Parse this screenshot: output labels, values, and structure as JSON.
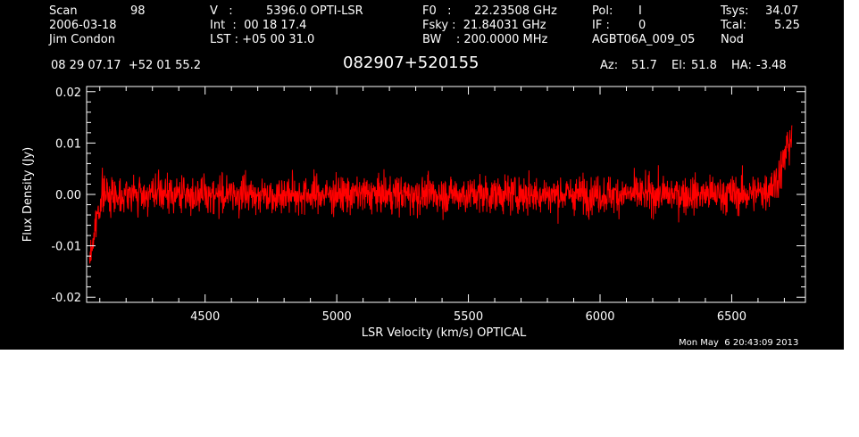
{
  "header": {
    "scan_label": "Scan",
    "scan_value": "98",
    "date": "2006-03-18",
    "observer": "Jim Condon",
    "v_label": "V   :",
    "v_value": "5396.0 OPTI-LSR",
    "int_line": "Int  :  00 18 17.4",
    "lst_line": "LST : +05 00 31.0",
    "f0_label": "F0   :",
    "f0_value": "22.23508 GHz",
    "fsky_line": "Fsky :  21.84031 GHz",
    "bw_line": "BW    : 200.0000 MHz",
    "pol_label": "Pol:",
    "pol_value": "I",
    "if_label": "IF :",
    "if_value": "0",
    "project": "AGBT06A_009_05",
    "tsys_label": "Tsys:",
    "tsys_value": "34.07",
    "tcal_label": "Tcal:",
    "tcal_value": "5.25",
    "mode": "Nod",
    "coords": "08 29 07.17  +52 01 55.2",
    "source": "082907+520155",
    "az_label": "Az:",
    "az_value": "51.7",
    "el_label": "El:",
    "el_value": "51.8",
    "ha_label": "HA:",
    "ha_value": "-3.48"
  },
  "timestamp": "Mon May  6 20:43:09 2013",
  "colors": {
    "background": "#000000",
    "trace": "#ff0000",
    "axes": "#ffffff",
    "page": "#ffffff"
  },
  "chart_data": {
    "type": "line",
    "title": "",
    "xlabel": "LSR Velocity (km/s) OPTICAL",
    "ylabel": "Flux Density (Jy)",
    "xlim": [
      4050,
      6780
    ],
    "ylim": [
      -0.021,
      0.021
    ],
    "xticks": [
      4500,
      5000,
      5500,
      6000,
      6500
    ],
    "xtick_labels": [
      "4500",
      "5000",
      "5500",
      "6000",
      "6500"
    ],
    "yticks": [
      -0.02,
      -0.01,
      0.0,
      0.01,
      0.02
    ],
    "ytick_labels": [
      "-0.02",
      "-0.01",
      "0.00",
      "0.01",
      "0.02"
    ],
    "grid": false,
    "series": [
      {
        "color": "#ff0000",
        "x_range": [
          4060,
          6730
        ],
        "envelope": {
          "x": [
            4060,
            4075,
            4090,
            4110,
            4150,
            4300,
            4800,
            5300,
            5800,
            6300,
            6550,
            6620,
            6660,
            6690,
            6710,
            6730
          ],
          "mean": [
            -0.013,
            -0.009,
            -0.004,
            0.0,
            0.0,
            0.0,
            0.0,
            0.0,
            0.0,
            0.0,
            0.0,
            0.0005,
            0.002,
            0.005,
            0.009,
            0.012
          ],
          "noise": [
            0.0015,
            0.0022,
            0.0027,
            0.003,
            0.003,
            0.003,
            0.003,
            0.003,
            0.003,
            0.003,
            0.0031,
            0.0032,
            0.0034,
            0.0036,
            0.0038,
            0.004
          ]
        }
      }
    ]
  }
}
